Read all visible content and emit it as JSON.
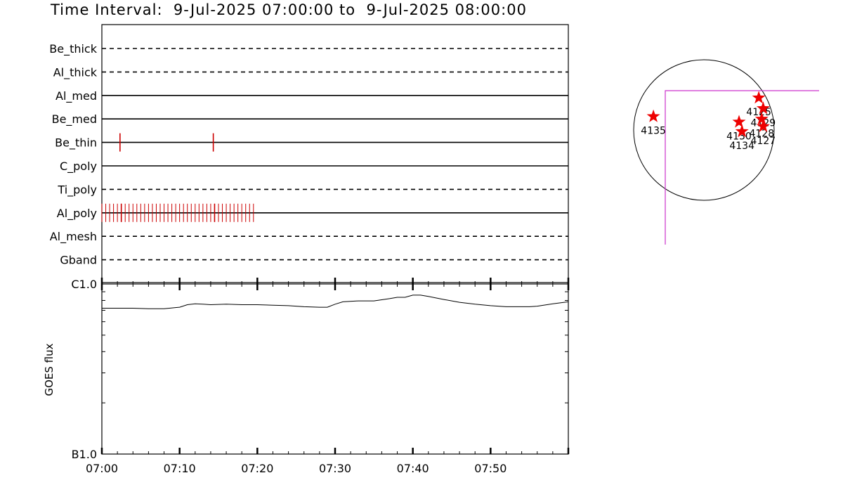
{
  "title": "Time Interval:  9-Jul-2025 07:00:00 to  9-Jul-2025 08:00:00",
  "colors": {
    "event": "#cc0000",
    "star": "#ee0000",
    "fov": "#cc33cc",
    "line": "#000000"
  },
  "chart_data": [
    {
      "type": "table",
      "name": "filter-timeline",
      "x_domain": [
        "07:00",
        "08:00"
      ],
      "rows": [
        {
          "label": "Be_thick",
          "style": "dashed",
          "events": []
        },
        {
          "label": "Al_thick",
          "style": "dashed",
          "events": []
        },
        {
          "label": "Al_med",
          "style": "solid",
          "events": []
        },
        {
          "label": "Be_med",
          "style": "solid",
          "events": []
        },
        {
          "label": "Be_thin",
          "style": "solid",
          "events": [
            "07:02:20",
            "07:14:20"
          ]
        },
        {
          "label": "C_poly",
          "style": "solid",
          "events": []
        },
        {
          "label": "Ti_poly",
          "style": "dashed",
          "events": []
        },
        {
          "label": "Al_poly",
          "style": "solid",
          "events_range": {
            "start": "07:00:00",
            "end": "07:19:30",
            "step_seconds": 30
          },
          "events_emphasized": [
            "07:02:30",
            "07:14:30"
          ]
        },
        {
          "label": "Al_mesh",
          "style": "dashed",
          "events": []
        },
        {
          "label": "Gband",
          "style": "dashed",
          "events": []
        }
      ]
    },
    {
      "type": "line",
      "name": "goes-flux",
      "ylabel": "GOES flux",
      "y_scale": "log",
      "y_ticks": [
        "B1.0",
        "C1.0"
      ],
      "ylim": [
        1e-07,
        1e-06
      ],
      "x_ticks": [
        "07:00",
        "07:10",
        "07:20",
        "07:30",
        "07:40",
        "07:50"
      ],
      "x": [
        "07:00",
        "07:02",
        "07:04",
        "07:06",
        "07:08",
        "07:10",
        "07:11",
        "07:12",
        "07:13",
        "07:14",
        "07:16",
        "07:18",
        "07:20",
        "07:22",
        "07:24",
        "07:26",
        "07:28",
        "07:29",
        "07:30",
        "07:31",
        "07:33",
        "07:35",
        "07:37",
        "07:38",
        "07:39",
        "07:40",
        "07:41",
        "07:42",
        "07:44",
        "07:46",
        "07:48",
        "07:50",
        "07:52",
        "07:54",
        "07:55",
        "07:56",
        "07:58",
        "08:00"
      ],
      "y": [
        7.2e-07,
        7.2e-07,
        7.2e-07,
        7.15e-07,
        7.15e-07,
        7.3e-07,
        7.55e-07,
        7.65e-07,
        7.6e-07,
        7.55e-07,
        7.6e-07,
        7.55e-07,
        7.55e-07,
        7.5e-07,
        7.45e-07,
        7.35e-07,
        7.3e-07,
        7.3e-07,
        7.6e-07,
        7.85e-07,
        7.95e-07,
        7.95e-07,
        8.2e-07,
        8.35e-07,
        8.35e-07,
        8.6e-07,
        8.6e-07,
        8.45e-07,
        8.1e-07,
        7.8e-07,
        7.6e-07,
        7.45e-07,
        7.35e-07,
        7.35e-07,
        7.35e-07,
        7.4e-07,
        7.65e-07,
        7.85e-07
      ]
    },
    {
      "type": "scatter",
      "name": "solar-disk-regions",
      "points": [
        {
          "label": "4125",
          "x": 750,
          "y": 440
        },
        {
          "label": "4135",
          "x": -690,
          "y": 185
        },
        {
          "label": "4129",
          "x": 810,
          "y": 295
        },
        {
          "label": "4128",
          "x": 790,
          "y": 150
        },
        {
          "label": "4130",
          "x": 480,
          "y": 110
        },
        {
          "label": "4134",
          "x": 520,
          "y": -20
        },
        {
          "label": "4127",
          "x": 810,
          "y": 50
        }
      ]
    }
  ]
}
